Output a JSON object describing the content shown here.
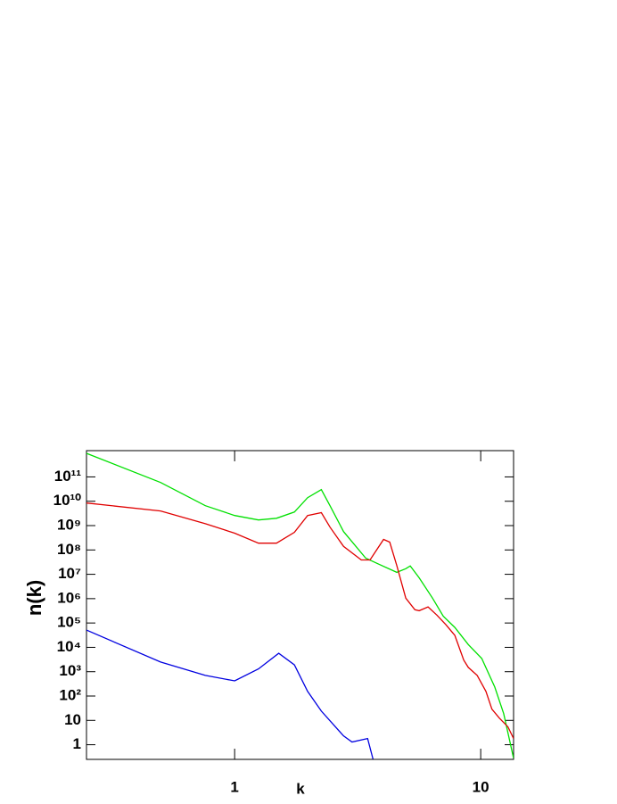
{
  "chart_data": {
    "type": "line",
    "x_label": "k",
    "y_label": "n(k)",
    "log_x": true,
    "log_y": true,
    "xlim": [
      0.25,
      13.6
    ],
    "ylim": [
      0.25,
      1200000000000.0
    ],
    "xticks": [
      1,
      10
    ],
    "yticks": [
      1,
      10,
      {
        "value": 100,
        "label": "10²"
      },
      {
        "value": 1000,
        "label": "10³"
      },
      {
        "value": 10000,
        "label": "10⁴"
      },
      {
        "value": 100000,
        "label": "10⁵"
      },
      {
        "value": 1000000,
        "label": "10⁶"
      },
      {
        "value": 10000000,
        "label": "10⁷"
      },
      {
        "value": 100000000,
        "label": "10⁸"
      },
      {
        "value": 1000000000,
        "label": "10⁹"
      },
      {
        "value": 10000000000,
        "label": "10¹⁰"
      },
      {
        "value": 100000000000,
        "label": "10¹¹"
      }
    ],
    "series": [
      {
        "color": "#00e000",
        "x": [
          0.25,
          0.5,
          0.76,
          1,
          1.25,
          1.48,
          1.75,
          1.98,
          2.25,
          2.44,
          2.77,
          3.41,
          3.86,
          4.56,
          4.96,
          5.17,
          5.62,
          6.37,
          7.04,
          7.85,
          8.9,
          10.1,
          11.4,
          12.4,
          13.6
        ],
        "values": [
          930000000000.0,
          59000000000.0,
          6600000000.0,
          2600000000.0,
          1700000000.0,
          2000000000.0,
          3600000000.0,
          14000000000.0,
          30000000000.0,
          6600000000.0,
          570000000.0,
          46000000.0,
          26000000.0,
          12000000.0,
          17000000.0,
          22000000.0,
          7200000.0,
          1050000.0,
          190000.0,
          66000.0,
          13000.0,
          3500,
          235,
          19,
          0.28
        ]
      },
      {
        "color": "#e00000",
        "x": [
          0.25,
          0.5,
          0.76,
          1,
          1.25,
          1.48,
          1.75,
          1.98,
          2.25,
          2.44,
          2.77,
          3.27,
          3.55,
          4.03,
          4.27,
          4.56,
          4.96,
          5.4,
          5.62,
          6.11,
          6.64,
          7.22,
          7.85,
          8.53,
          8.9,
          9.68,
          10.5,
          11.1,
          11.9,
          12.9,
          13.6
        ],
        "values": [
          8500000000.0,
          4000000000.0,
          1200000000.0,
          490000000.0,
          190000000.0,
          190000000.0,
          530000000.0,
          2600000000.0,
          3400000000.0,
          870000000.0,
          140000000.0,
          39000000.0,
          39000000.0,
          270000000.0,
          210000000.0,
          23000000.0,
          1050000.0,
          350000.0,
          320000.0,
          460000.0,
          210000.0,
          85000.0,
          31000.0,
          3000,
          1500,
          700,
          155,
          29,
          12.4,
          5.4,
          1.8
        ]
      },
      {
        "color": "#0000e0",
        "x": [
          0.25,
          0.5,
          0.76,
          1,
          1.25,
          1.51,
          1.75,
          1.98,
          2.25,
          2.77,
          3.0,
          3.47,
          3.65
        ],
        "values": [
          51000.0,
          2500,
          700,
          420,
          1300,
          5700,
          1900,
          155,
          24,
          2.3,
          1.3,
          1.8,
          0.26
        ]
      }
    ]
  }
}
